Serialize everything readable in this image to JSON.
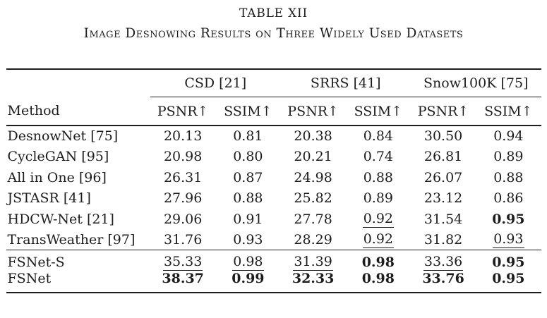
{
  "caption": {
    "label": "TABLE XII",
    "title": "Image Desnowing Results on Three Widely Used Datasets"
  },
  "table": {
    "method_header": "Method",
    "groups": [
      "CSD [21]",
      "SRRS [41]",
      "Snow100K [75]"
    ],
    "metric_headers": [
      "PSNR↑",
      "SSIM↑",
      "PSNR↑",
      "SSIM↑",
      "PSNR↑",
      "SSIM↑"
    ],
    "sections": [
      {
        "rows": [
          {
            "method": "DesnowNet [75]",
            "values": [
              "20.13",
              "0.81",
              "20.38",
              "0.84",
              "30.50",
              "0.94"
            ],
            "styles": [
              "plain",
              "plain",
              "plain",
              "plain",
              "plain",
              "plain"
            ]
          },
          {
            "method": "CycleGAN [95]",
            "values": [
              "20.98",
              "0.80",
              "20.21",
              "0.74",
              "26.81",
              "0.89"
            ],
            "styles": [
              "plain",
              "plain",
              "plain",
              "plain",
              "plain",
              "plain"
            ]
          },
          {
            "method": "All in One [96]",
            "values": [
              "26.31",
              "0.87",
              "24.98",
              "0.88",
              "26.07",
              "0.88"
            ],
            "styles": [
              "plain",
              "plain",
              "plain",
              "plain",
              "plain",
              "plain"
            ]
          },
          {
            "method": "JSTASR [41]",
            "values": [
              "27.96",
              "0.88",
              "25.82",
              "0.89",
              "23.12",
              "0.86"
            ],
            "styles": [
              "plain",
              "plain",
              "plain",
              "plain",
              "plain",
              "plain"
            ]
          },
          {
            "method": "HDCW-Net [21]",
            "values": [
              "29.06",
              "0.91",
              "27.78",
              "0.92",
              "31.54",
              "0.95"
            ],
            "styles": [
              "plain",
              "plain",
              "plain",
              "underline",
              "plain",
              "bold"
            ]
          },
          {
            "method": "TransWeather [97]",
            "values": [
              "31.76",
              "0.93",
              "28.29",
              "0.92",
              "31.82",
              "0.93"
            ],
            "styles": [
              "plain",
              "plain",
              "plain",
              "underline",
              "plain",
              "underline"
            ]
          }
        ]
      },
      {
        "rows": [
          {
            "method": "FSNet-S",
            "values": [
              "35.33",
              "0.98",
              "31.39",
              "0.98",
              "33.36",
              "0.95"
            ],
            "styles": [
              "underline",
              "underline",
              "underline",
              "bold",
              "underline",
              "bold"
            ]
          },
          {
            "method": "FSNet",
            "values": [
              "38.37",
              "0.99",
              "32.33",
              "0.98",
              "33.76",
              "0.95"
            ],
            "styles": [
              "bold",
              "bold",
              "bold",
              "bold",
              "bold",
              "bold"
            ]
          }
        ]
      }
    ]
  },
  "colors": {
    "text": "#1d1d1d",
    "rule": "#1d1d1d",
    "background": "#ffffff"
  }
}
